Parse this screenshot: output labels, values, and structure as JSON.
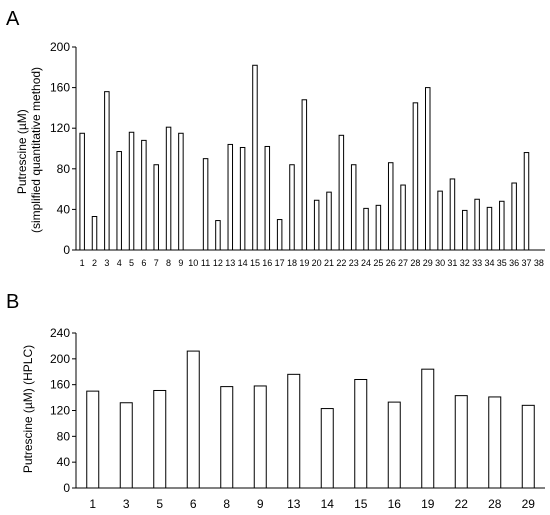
{
  "chart_data": [
    {
      "panel_label": "A",
      "type": "bar",
      "ylabel_lines": [
        "Putrescine (µM)",
        "(simplified quantitative method)"
      ],
      "ylim": [
        0,
        200
      ],
      "yticks": [
        0,
        40,
        80,
        120,
        160,
        200
      ],
      "categories": [
        "1",
        "2",
        "3",
        "4",
        "5",
        "6",
        "7",
        "8",
        "9",
        "10",
        "11",
        "12",
        "13",
        "14",
        "15",
        "16",
        "17",
        "18",
        "19",
        "20",
        "21",
        "22",
        "23",
        "24",
        "25",
        "26",
        "27",
        "28",
        "29",
        "30",
        "31",
        "32",
        "33",
        "34",
        "35",
        "36",
        "37",
        "38"
      ],
      "values": [
        115,
        33,
        156,
        97,
        116,
        108,
        84,
        121,
        115,
        0,
        90,
        29,
        104,
        101,
        182,
        102,
        30,
        84,
        148,
        49,
        57,
        113,
        84,
        41,
        44,
        86,
        64,
        145,
        160,
        58,
        70,
        39,
        50,
        42,
        48,
        66,
        96,
        0
      ],
      "grid": false
    },
    {
      "panel_label": "B",
      "type": "bar",
      "ylabel_lines": [
        "Putrescine (µM) (HPLC)"
      ],
      "ylim": [
        0,
        240
      ],
      "yticks": [
        0,
        40,
        80,
        120,
        160,
        200,
        240
      ],
      "categories": [
        "1",
        "3",
        "5",
        "6",
        "8",
        "9",
        "13",
        "14",
        "15",
        "16",
        "19",
        "22",
        "28",
        "29"
      ],
      "values": [
        150,
        132,
        151,
        212,
        157,
        158,
        176,
        123,
        168,
        133,
        184,
        143,
        141,
        128
      ],
      "grid": false
    }
  ]
}
